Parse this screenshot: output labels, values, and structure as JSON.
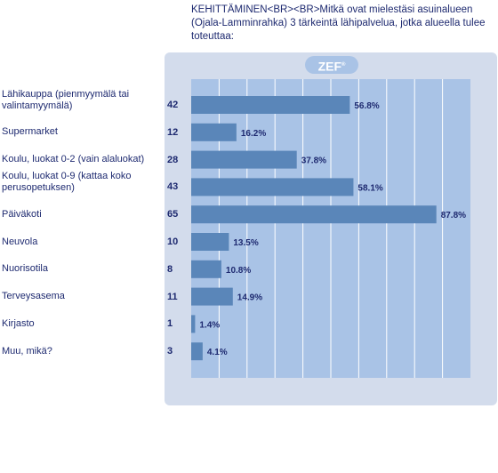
{
  "title": "KEHITTÄMINEN<BR><BR>Mitkä ovat mielestäsi asuinalueen (Ojala-Lamminrahka) 3 tärkeintä lähipalvelua, jotka alueella tulee toteuttaa:",
  "logo": "ZEF",
  "colors": {
    "bar": "#5a86b9",
    "plot": "#a9c3e6",
    "panel": "#d3dcec",
    "text": "#1e2a70"
  },
  "chart_data": {
    "type": "bar",
    "orientation": "horizontal",
    "categories": [
      "Lähikauppa (pienmyymälä tai valintamyymälä)",
      "Supermarket",
      "Koulu, luokat 0-2 (vain alaluokat)",
      "Koulu, luokat 0-9 (kattaa koko perusopetuksen)",
      "Päiväkoti",
      "Neuvola",
      "Nuorisotila",
      "Terveysasema",
      "Kirjasto",
      "Muu, mikä?"
    ],
    "counts": [
      "42",
      "12",
      "28",
      "43",
      "65",
      "10",
      "8",
      "11",
      "1",
      "3"
    ],
    "values": [
      56.8,
      16.2,
      37.8,
      58.1,
      87.8,
      13.5,
      10.8,
      14.9,
      1.4,
      4.1
    ],
    "value_labels": [
      "56.8%",
      "16.2%",
      "37.8%",
      "58.1%",
      "87.8%",
      "13.5%",
      "10.8%",
      "14.9%",
      "1.4%",
      "4.1%"
    ],
    "xlim": [
      0,
      100
    ],
    "grid": true
  }
}
